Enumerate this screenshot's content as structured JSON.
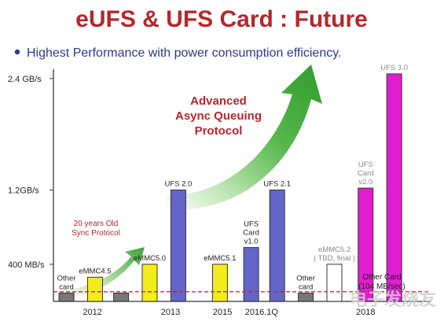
{
  "colors": {
    "title": "#b3282d",
    "subtitle": "#2b3a8e",
    "bullet": "#2b3a8e",
    "axis": "#555555",
    "baseline": "#b3282d",
    "arrow_green": "#3da33a",
    "annotation_red": "#b3282d",
    "label_gray": "#888888",
    "watermark": "#cfcfcf"
  },
  "chart_data": {
    "type": "bar",
    "title": "eUFS & UFS Card : Future",
    "subtitle": "Highest Performance with power consumption efficiency.",
    "yticks": [
      {
        "label": "2.4 GB/s",
        "value": 2400
      },
      {
        "label": "1.2GB/s",
        "value": 1200
      },
      {
        "label": "400 MB/s",
        "value": 400
      }
    ],
    "ylim": [
      0,
      2500
    ],
    "x_groups": [
      {
        "label": "2012",
        "center": 1.5
      },
      {
        "label": "2013",
        "center": 4.5
      },
      {
        "label": "2015",
        "center": 6.5
      },
      {
        "label": "2016.1Q",
        "center": 8.0
      },
      {
        "label": "2018",
        "center": 12.0
      }
    ],
    "xlim": [
      0,
      14.5
    ],
    "bars": [
      {
        "id": "other-card-2012",
        "x": 0.5,
        "value": 90,
        "color": "#777777",
        "label_lines": [
          "Other",
          "card"
        ],
        "label_color": "#222222"
      },
      {
        "id": "emmc45",
        "x": 1.6,
        "value": 260,
        "color": "#f3ec1b",
        "label_lines": [
          "eMMC4.5"
        ],
        "label_color": "#222222"
      },
      {
        "id": "gray-2013",
        "x": 2.6,
        "value": 90,
        "color": "#777777",
        "label_lines": [],
        "label_color": "#222222"
      },
      {
        "id": "emmc50",
        "x": 3.7,
        "value": 400,
        "color": "#f3ec1b",
        "label_lines": [
          "eMMC5.0"
        ],
        "label_color": "#222222"
      },
      {
        "id": "ufs20",
        "x": 4.8,
        "value": 1200,
        "color": "#6266c8",
        "label_lines": [
          "UFS 2.0"
        ],
        "label_color": "#222222"
      },
      {
        "id": "emmc51",
        "x": 6.4,
        "value": 400,
        "color": "#f3ec1b",
        "label_lines": [
          "eMMC5.1"
        ],
        "label_color": "#222222"
      },
      {
        "id": "ufs-card-v10",
        "x": 7.6,
        "value": 580,
        "color": "#6266c8",
        "label_lines": [
          "UFS",
          "Card",
          "v1.0"
        ],
        "label_color": "#222222"
      },
      {
        "id": "ufs21",
        "x": 8.6,
        "value": 1200,
        "color": "#6266c8",
        "label_lines": [
          "UFS 2.1"
        ],
        "label_color": "#222222"
      },
      {
        "id": "other-card-2016",
        "x": 9.7,
        "value": 90,
        "color": "#777777",
        "label_lines": [
          "Other",
          "card"
        ],
        "label_color": "#222222"
      },
      {
        "id": "emmc52",
        "x": 10.8,
        "value": 400,
        "color": "#ffffff",
        "label_lines": [
          "eMMC5.2",
          "( TBD, final )"
        ],
        "label_color": "#888888"
      },
      {
        "id": "ufs-card-v20",
        "x": 12.0,
        "value": 1220,
        "color": "#e01ed0",
        "label_lines": [
          "UFS",
          "Card",
          "v2.0"
        ],
        "label_color": "#888888"
      },
      {
        "id": "ufs30",
        "x": 13.1,
        "value": 2450,
        "color": "#e01ed0",
        "label_lines": [
          "UFS 3.0"
        ],
        "label_color": "#888888"
      }
    ],
    "baseline": {
      "value": 104,
      "label_lines": [
        "Other Card",
        "(104 MB/sec)"
      ]
    },
    "annotations": {
      "small_arrow_text": [
        "20 years Old",
        "Sync Protocol"
      ],
      "big_arrow_text": [
        "Advanced",
        "Async Queuing",
        "Protocol"
      ]
    }
  },
  "watermark": "电子发烧友"
}
